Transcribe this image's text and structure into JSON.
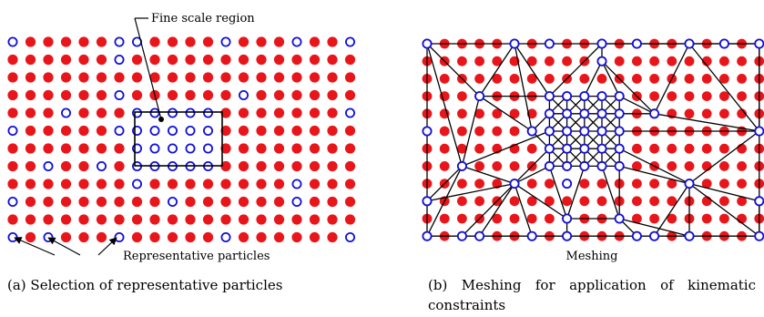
{
  "panel_a": {
    "callout_fine": "Fine scale region",
    "callout_rep": "Representative particles",
    "caption": "(a) Selection of representative particles",
    "colors": {
      "particle": "#e8161b",
      "representative": "#1010d8"
    }
  },
  "panel_b": {
    "label": "Meshing",
    "caption": "(b) Meshing for application of kinematic constraints",
    "colors": {
      "particle": "#e8161b",
      "node": "#1010d8",
      "mesh_line": "#000000"
    }
  }
}
